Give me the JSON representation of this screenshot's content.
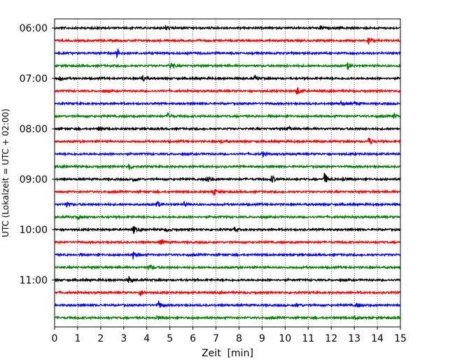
{
  "chart_data": {
    "type": "line",
    "title": "",
    "xlabel": "Zeit  [min]",
    "ylabel": "UTC (Lokalzeit = UTC + 02:00)",
    "xlim": [
      0,
      15
    ],
    "x_ticks": [
      0,
      1,
      2,
      3,
      4,
      5,
      6,
      7,
      8,
      9,
      10,
      11,
      12,
      13,
      14,
      15
    ],
    "x_tick_labels": [
      "0",
      "1",
      "2",
      "3",
      "4",
      "5",
      "6",
      "7",
      "8",
      "9",
      "10",
      "11",
      "12",
      "13",
      "14",
      "15"
    ],
    "y_tick_labels": [
      "06:00",
      "07:00",
      "08:00",
      "09:00",
      "10:00",
      "11:00"
    ],
    "grid": "vertical-dotted",
    "trace_colors": [
      "#000000",
      "#ff0000",
      "#0000ff",
      "#008000"
    ],
    "series": [
      {
        "start": "06:00",
        "color": "#000000",
        "events": [
          [
            4.8,
            3.5
          ],
          [
            11.5,
            3
          ]
        ]
      },
      {
        "start": "06:15",
        "color": "#ff0000",
        "events": [
          [
            13.6,
            6
          ]
        ]
      },
      {
        "start": "06:30",
        "color": "#0000ff",
        "events": [
          [
            2.7,
            6
          ]
        ]
      },
      {
        "start": "06:45",
        "color": "#008000",
        "events": [
          [
            5.0,
            7
          ],
          [
            12.7,
            5
          ],
          [
            15.0,
            5
          ]
        ]
      },
      {
        "start": "07:00",
        "color": "#000000",
        "events": [
          [
            0.2,
            4
          ],
          [
            3.8,
            6
          ],
          [
            8.7,
            4
          ]
        ]
      },
      {
        "start": "07:15",
        "color": "#ff0000",
        "events": [
          [
            2.1,
            2
          ],
          [
            10.5,
            7
          ]
        ]
      },
      {
        "start": "07:30",
        "color": "#0000ff",
        "events": [
          [
            12.4,
            3
          ],
          [
            13.0,
            2.5
          ]
        ]
      },
      {
        "start": "07:45",
        "color": "#008000",
        "events": [
          [
            4.9,
            5
          ],
          [
            14.7,
            3.5
          ]
        ]
      },
      {
        "start": "08:00",
        "color": "#000000",
        "events": [
          [
            1.9,
            3
          ],
          [
            10.1,
            4
          ]
        ]
      },
      {
        "start": "08:15",
        "color": "#ff0000",
        "events": [
          [
            7.2,
            3
          ],
          [
            13.6,
            7
          ]
        ]
      },
      {
        "start": "08:30",
        "color": "#0000ff",
        "events": [
          [
            9.0,
            4
          ]
        ]
      },
      {
        "start": "08:45",
        "color": "#008000",
        "events": [
          [
            3.2,
            6
          ]
        ]
      },
      {
        "start": "09:00",
        "color": "#000000",
        "events": [
          [
            3.4,
            4
          ],
          [
            6.6,
            6
          ],
          [
            9.4,
            6
          ],
          [
            11.7,
            9
          ],
          [
            12.5,
            5
          ]
        ]
      },
      {
        "start": "09:15",
        "color": "#ff0000",
        "events": [
          [
            6.9,
            5
          ]
        ]
      },
      {
        "start": "09:30",
        "color": "#0000ff",
        "events": [
          [
            0.5,
            4
          ],
          [
            4.4,
            6
          ],
          [
            5.6,
            3
          ]
        ]
      },
      {
        "start": "09:45",
        "color": "#008000",
        "events": [
          [
            1.0,
            3
          ]
        ]
      },
      {
        "start": "10:00",
        "color": "#000000",
        "events": [
          [
            3.4,
            6
          ],
          [
            4.8,
            2.5
          ],
          [
            7.8,
            3
          ]
        ]
      },
      {
        "start": "10:15",
        "color": "#ff0000",
        "events": [
          [
            4.6,
            5
          ]
        ]
      },
      {
        "start": "10:30",
        "color": "#0000ff",
        "events": [
          [
            3.4,
            6
          ]
        ]
      },
      {
        "start": "10:45",
        "color": "#008000",
        "events": [
          [
            4.1,
            5
          ]
        ]
      },
      {
        "start": "11:00",
        "color": "#000000",
        "events": [
          [
            3.2,
            6
          ]
        ]
      },
      {
        "start": "11:15",
        "color": "#ff0000",
        "events": [
          [
            3.7,
            5
          ]
        ]
      },
      {
        "start": "11:30",
        "color": "#0000ff",
        "events": [
          [
            4.5,
            6
          ],
          [
            10.5,
            3
          ],
          [
            13.1,
            4
          ]
        ]
      },
      {
        "start": "11:45",
        "color": "#008000",
        "events": [
          [
            4.4,
            4
          ],
          [
            13.0,
            3
          ]
        ]
      }
    ]
  }
}
